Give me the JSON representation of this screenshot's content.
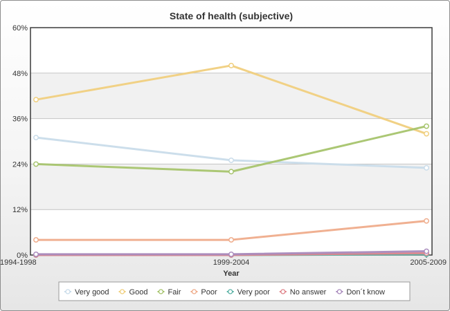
{
  "chart_data": {
    "type": "line",
    "title": "State of health (subjective)",
    "xlabel": "Year",
    "ylabel": "",
    "categories": [
      "1994-1998",
      "1999-2004",
      "2005-2009"
    ],
    "ylim": [
      0,
      60
    ],
    "yticks": [
      0,
      12,
      24,
      36,
      48,
      60
    ],
    "ytick_labels": [
      "0%",
      "12%",
      "24%",
      "36%",
      "48%",
      "60%"
    ],
    "grid": true,
    "legend_position": "bottom",
    "series": [
      {
        "name": "Very good",
        "color": "#c9dcea",
        "values": [
          31,
          25,
          23
        ]
      },
      {
        "name": "Good",
        "color": "#f0cf7e",
        "values": [
          41,
          50,
          32
        ]
      },
      {
        "name": "Fair",
        "color": "#a6c46d",
        "values": [
          24,
          22,
          34
        ]
      },
      {
        "name": "Poor",
        "color": "#efac8b",
        "values": [
          4,
          4,
          9
        ]
      },
      {
        "name": "Very poor",
        "color": "#5cb3a6",
        "values": [
          0,
          0,
          0.2
        ]
      },
      {
        "name": "No answer",
        "color": "#e0868c",
        "values": [
          0,
          0,
          0.5
        ]
      },
      {
        "name": "Don´t know",
        "color": "#a98bbd",
        "values": [
          0.2,
          0.2,
          1
        ]
      }
    ]
  }
}
